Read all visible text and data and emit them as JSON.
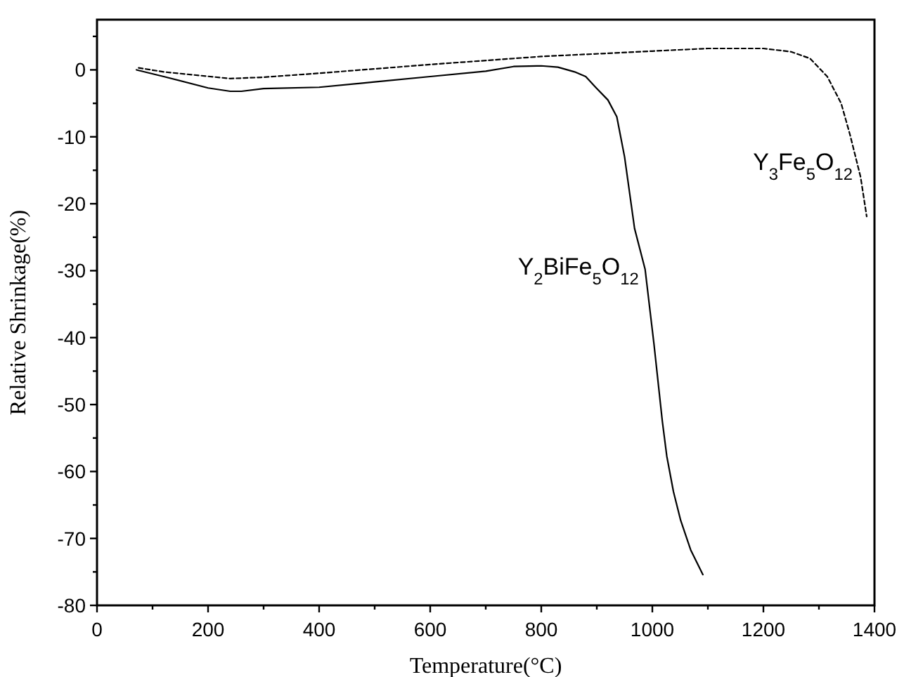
{
  "chart_data": {
    "type": "line",
    "xlabel": "Temperature(°C)",
    "ylabel": "Relative Shrinkage(%)",
    "xlim": [
      0,
      1400
    ],
    "ylim": [
      -80,
      7.5
    ],
    "xticks": [
      0,
      {
        "value": 100,
        "label": null
      },
      200,
      {
        "value": 300,
        "label": null
      },
      400,
      {
        "value": 500,
        "label": null
      },
      600,
      {
        "value": 700,
        "label": null
      },
      800,
      {
        "value": 900,
        "label": null
      },
      1000,
      {
        "value": 1100,
        "label": null
      },
      1200,
      {
        "value": 1300,
        "label": null
      },
      1400
    ],
    "yticks": [
      -80,
      {
        "value": -75,
        "label": null
      },
      -70,
      {
        "value": -65,
        "label": null
      },
      -60,
      {
        "value": -55,
        "label": null
      },
      -50,
      {
        "value": -45,
        "label": null
      },
      -40,
      {
        "value": -35,
        "label": null
      },
      -30,
      {
        "value": -25,
        "label": null
      },
      -20,
      {
        "value": -15,
        "label": null
      },
      -10,
      {
        "value": -5,
        "label": null
      },
      0,
      {
        "value": 5,
        "label": null
      }
    ],
    "grid": false,
    "marker": "none",
    "series": [
      {
        "name": "Y$_{2}$BiFe$_{5}$O$_{12}$",
        "color": "#000000",
        "line_style": "solid",
        "x": [
          71,
          120,
          200,
          240,
          260,
          300,
          400,
          500,
          600,
          700,
          750,
          800,
          830,
          860,
          880,
          899,
          920,
          936,
          950,
          968,
          987,
          1003,
          1018,
          1026,
          1038,
          1051,
          1069,
          1091
        ],
        "values": [
          0,
          -1,
          -2.7,
          -3.2,
          -3.2,
          -2.8,
          -2.6,
          -1.8,
          -1,
          -0.2,
          0.5,
          0.6,
          0.4,
          -0.3,
          -1,
          -2.7,
          -4.5,
          -7,
          -13,
          -23.7,
          -29.8,
          -41,
          -52.5,
          -57.7,
          -63,
          -67.3,
          -71.7,
          -75.4
        ]
      },
      {
        "name": "Y$_{3}$Fe$_{5}$O$_{12}$",
        "color": "#000000",
        "line_style": "dashed",
        "x": [
          75,
          120,
          240,
          300,
          400,
          600,
          800,
          1000,
          1100,
          1200,
          1250,
          1284,
          1315,
          1340,
          1356,
          1375,
          1386
        ],
        "values": [
          0.3,
          -0.3,
          -1.3,
          -1.1,
          -0.5,
          0.8,
          2,
          2.8,
          3.2,
          3.2,
          2.7,
          1.7,
          -1,
          -5,
          -9.7,
          -16,
          -21.9
        ]
      }
    ]
  }
}
